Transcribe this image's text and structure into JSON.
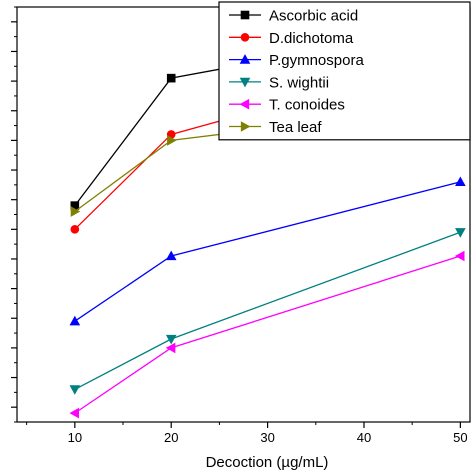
{
  "chart_data": {
    "type": "line",
    "xlabel": "Decoction (µg/mL)",
    "ylabel": "",
    "x": [
      10,
      20,
      50
    ],
    "xlim": [
      4,
      51
    ],
    "xticks": [
      10,
      20,
      30,
      40,
      50
    ],
    "ylim": [
      -0.5,
      13.5
    ],
    "grid": false,
    "legend_position": "top-right",
    "series": [
      {
        "name": "Ascorbic acid",
        "values": [
          6.8,
          11.1,
          12.9
        ],
        "color": "#000000",
        "marker": "square"
      },
      {
        "name": "D.dichotoma",
        "values": [
          6.0,
          9.2,
          11.9
        ],
        "color": "#ff0000",
        "marker": "circle"
      },
      {
        "name": "P.gymnospora",
        "values": [
          2.9,
          5.1,
          7.6
        ],
        "color": "#0000ff",
        "marker": "triangle-up"
      },
      {
        "name": "S. wightii",
        "values": [
          0.6,
          2.3,
          5.9
        ],
        "color": "#008080",
        "marker": "triangle-down"
      },
      {
        "name": "T. conoides",
        "values": [
          -0.2,
          2.0,
          5.1
        ],
        "color": "#ff00ff",
        "marker": "triangle-left"
      },
      {
        "name": "Tea leaf",
        "values": [
          6.6,
          9.0,
          10.2
        ],
        "color": "#808000",
        "marker": "triangle-right"
      }
    ]
  }
}
